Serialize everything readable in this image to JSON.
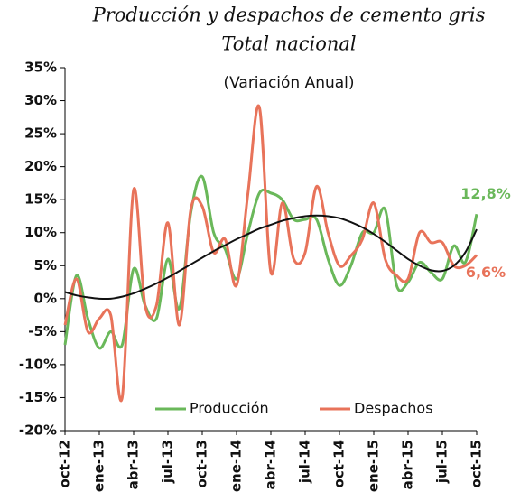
{
  "chart_data": {
    "type": "line",
    "title": "Producción  y despachos de cemento gris",
    "title_line_2": "Total nacional",
    "subtitle": "(Variación Anual)",
    "categories": [
      "oct-12",
      null,
      null,
      "ene-13",
      null,
      null,
      "abr-13",
      null,
      null,
      "jul-13",
      null,
      null,
      "oct-13",
      null,
      null,
      "ene-14",
      null,
      null,
      "abr-14",
      null,
      null,
      "jul-14",
      null,
      null,
      "oct-14",
      null,
      null,
      "ene-15",
      null,
      null,
      "abr-15",
      null,
      null,
      "jul-15",
      null,
      null,
      "oct-15"
    ],
    "ylim": [
      -20,
      35
    ],
    "yticks": [
      {
        "value": -20,
        "label": "-20%"
      },
      {
        "value": -15,
        "label": "-15%"
      },
      {
        "value": -10,
        "label": "-10%"
      },
      {
        "value": -5,
        "label": "-5%"
      },
      {
        "value": 0,
        "label": "0%"
      },
      {
        "value": 5,
        "label": "5%"
      },
      {
        "value": 10,
        "label": "10%"
      },
      {
        "value": 15,
        "label": "15%"
      },
      {
        "value": 20,
        "label": "20%"
      },
      {
        "value": 25,
        "label": "25%"
      },
      {
        "value": 30,
        "label": "30%"
      },
      {
        "value": 35,
        "label": "35%"
      }
    ],
    "grid": false,
    "legend": "bottom",
    "series": [
      {
        "name": "Producción",
        "color": "#6ab85a",
        "values": [
          -7,
          3.5,
          -3,
          -7.5,
          -5,
          -7,
          4.5,
          -1,
          -3,
          6,
          -1.5,
          13,
          18.5,
          10,
          7.5,
          3,
          10,
          16,
          16,
          15,
          12,
          12,
          12,
          6,
          2,
          5,
          10,
          10,
          13.5,
          2,
          2.5,
          5.5,
          4,
          3,
          8,
          5.5,
          12.8
        ],
        "value_labels": [
          null,
          null,
          null,
          null,
          null,
          null,
          null,
          null,
          null,
          null,
          null,
          null,
          null,
          null,
          null,
          null,
          null,
          null,
          null,
          null,
          null,
          null,
          null,
          null,
          null,
          null,
          null,
          null,
          null,
          null,
          null,
          null,
          null,
          null,
          null,
          null,
          "12,8%"
        ]
      },
      {
        "name": "Despachos",
        "color": "#e8735a",
        "values": [
          -4,
          3,
          -5,
          -3,
          -2.5,
          -15,
          16.5,
          -1,
          -1,
          11.5,
          -4,
          13.5,
          14,
          7,
          9,
          2,
          16,
          29,
          4,
          14.5,
          6,
          7,
          17,
          10,
          5,
          6.5,
          9,
          14.5,
          6,
          3.5,
          3,
          10,
          8.5,
          8.5,
          5,
          5,
          6.6
        ],
        "value_labels": [
          null,
          null,
          null,
          null,
          null,
          null,
          null,
          null,
          null,
          null,
          null,
          null,
          null,
          null,
          null,
          null,
          null,
          null,
          null,
          null,
          null,
          null,
          null,
          null,
          null,
          null,
          null,
          null,
          null,
          null,
          null,
          null,
          null,
          null,
          null,
          null,
          "6,6%"
        ]
      },
      {
        "color": "#111111",
        "values": [
          1,
          0.5,
          0.2,
          0,
          0,
          0.3,
          0.8,
          1.5,
          2.3,
          3.2,
          4.2,
          5.2,
          6.2,
          7.2,
          8.1,
          9,
          9.8,
          10.6,
          11.2,
          11.8,
          12.2,
          12.5,
          12.6,
          12.5,
          12.2,
          11.6,
          10.8,
          9.8,
          8.6,
          7.3,
          6,
          5,
          4.3,
          4.2,
          5,
          7,
          10.5
        ]
      }
    ]
  }
}
